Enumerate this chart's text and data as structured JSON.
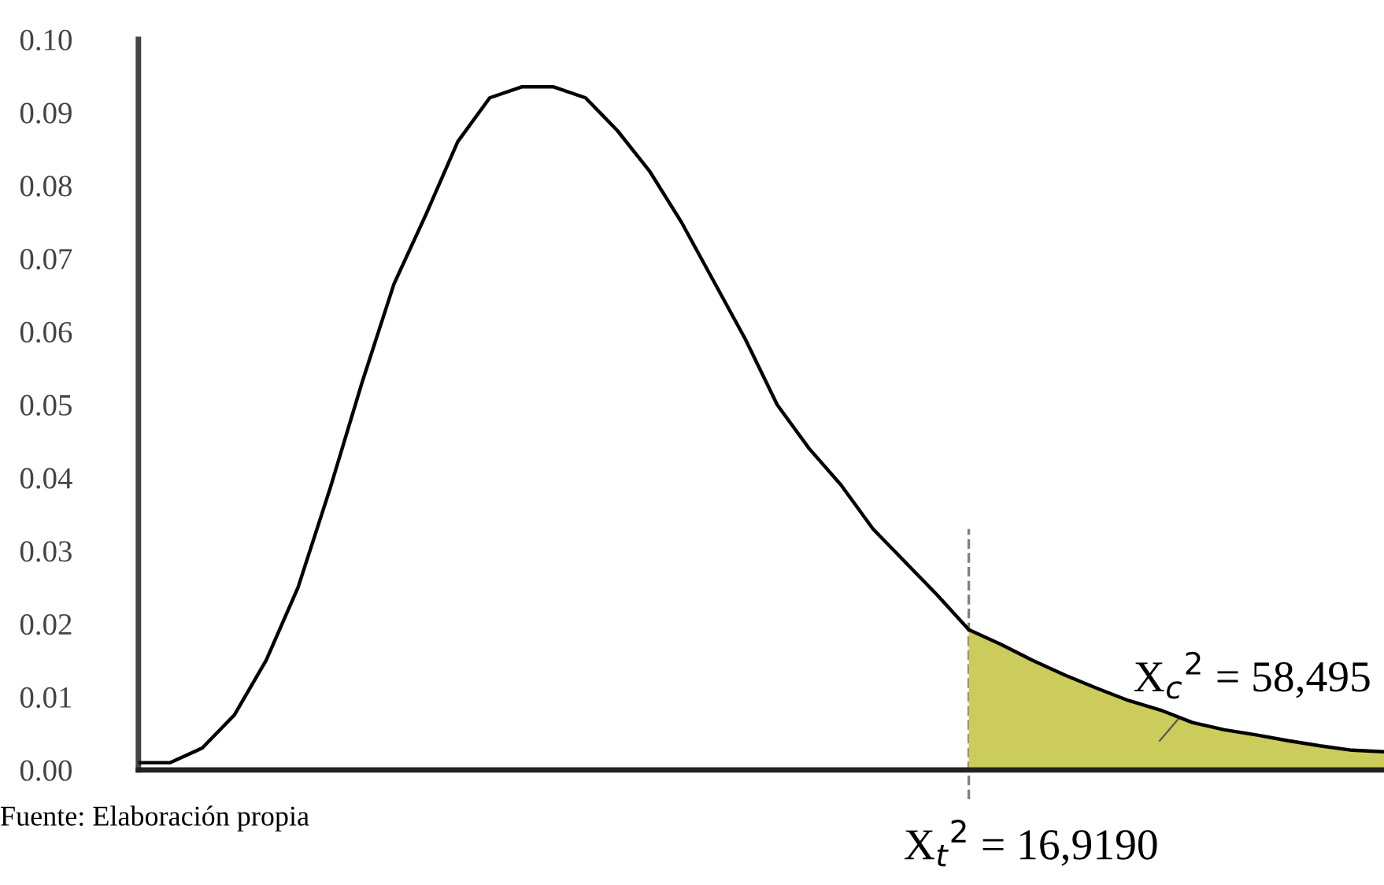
{
  "chart_data": {
    "type": "line",
    "categories": [
      null,
      null,
      null,
      null,
      null,
      null,
      null,
      null,
      null,
      null,
      null,
      null,
      null,
      null,
      null,
      null,
      null,
      null,
      null,
      null,
      null,
      null,
      null,
      null,
      null,
      null,
      null,
      null,
      null,
      null,
      null,
      null,
      null,
      null,
      null,
      null,
      null,
      null,
      null,
      null
    ],
    "series": [
      {
        "type": "area",
        "color": "#cccc5c",
        "values": [
          null,
          null,
          null,
          null,
          null,
          null,
          null,
          null,
          null,
          null,
          null,
          null,
          null,
          null,
          null,
          null,
          null,
          null,
          null,
          null,
          null,
          null,
          null,
          null,
          null,
          null,
          0.0192,
          0.0172,
          0.015,
          0.013,
          0.0112,
          0.0095,
          0.0082,
          0.0065,
          0.0055,
          0.0048,
          0.004,
          0.0033,
          0.0027,
          0.0025
        ]
      },
      {
        "type": "line",
        "color": "#000000",
        "values": [
          0.001,
          0.001,
          0.003,
          0.0075,
          0.015,
          0.025,
          0.0385,
          0.053,
          0.0665,
          0.076,
          0.086,
          0.092,
          0.0935,
          0.0935,
          0.092,
          0.0875,
          0.082,
          0.075,
          0.067,
          0.059,
          0.05,
          0.044,
          0.039,
          0.033,
          0.0285,
          0.024,
          0.0192,
          0.0172,
          0.015,
          0.013,
          0.0112,
          0.0095,
          0.0082,
          0.0065,
          0.0055,
          0.0048,
          0.004,
          0.0033,
          0.0027,
          0.0025
        ]
      }
    ],
    "ylim": [
      0,
      0.1
    ],
    "yticks": [
      {
        "value": 0,
        "label": "0.00"
      },
      {
        "value": 0.01,
        "label": "0.01"
      },
      {
        "value": 0.02,
        "label": "0.02"
      },
      {
        "value": 0.03,
        "label": "0.03"
      },
      {
        "value": 0.04,
        "label": "0.04"
      },
      {
        "value": 0.05,
        "label": "0.05"
      },
      {
        "value": 0.06,
        "label": "0.06"
      },
      {
        "value": 0.07,
        "label": "0.07"
      },
      {
        "value": 0.08,
        "label": "0.08"
      },
      {
        "value": 0.09,
        "label": "0.09"
      },
      {
        "value": 0.1,
        "label": "0.10"
      }
    ],
    "annotations": [
      "X$_{c}$$^{2}$ = 58,495",
      "X$_{t}$$^{2}$ = 16,9190",
      "Fuente: Elaboración propia"
    ],
    "grid": false,
    "legend": false,
    "marker": "none",
    "line_style": "solid"
  }
}
